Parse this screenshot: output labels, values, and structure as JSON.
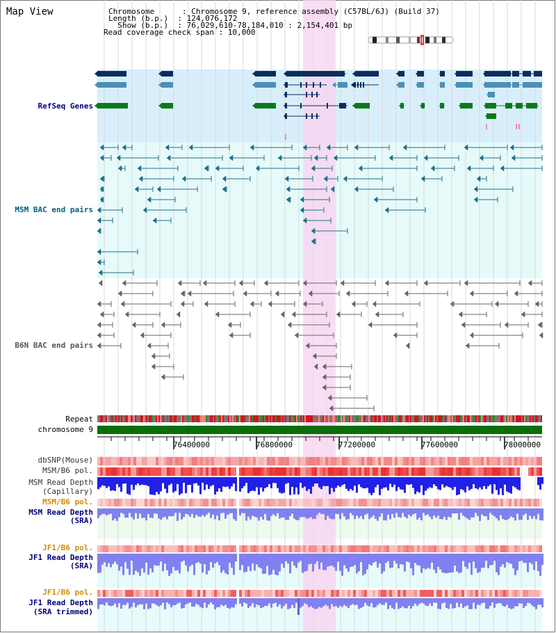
{
  "panel": {
    "title": "Map View"
  },
  "info": {
    "chromosome_label": "Chromosome      : ",
    "chromosome_value": "Chromosome 9, reference assembly (C57BL/6J) (Build 37)",
    "length_label": "Length (b.p.)  : ",
    "length_value": "124,076,172",
    "show_label": "  Show (b.p.)  : ",
    "show_value": "76,029,610-78,184,010 : 2,154,401 bp",
    "coverage_label": "Read coverage check span : ",
    "coverage_value": "10,000"
  },
  "tracks": {
    "refseq": "RefSeq Genes",
    "msm_bac": "MSM BAC end pairs",
    "b6n_bac": "B6N BAC end pairs",
    "repeat": "Repeat",
    "chromosome": "chromosome 9",
    "dbsnp": "dbSNP(Mouse)",
    "msm_b6_pol": "MSM/B6 pol.",
    "msm_read_depth": "MSM Read Depth",
    "msm_read_depth_sub": "(Capillary)",
    "msm_b6_pol_2": "MSM/B6 pol.",
    "msm_read_depth_sra": "MSM Read Depth",
    "msm_read_depth_sra_sub": "(SRA)",
    "jf1_b6_pol": "JF1/B6 pol.",
    "jf1_read_depth": "JF1 Read Depth",
    "jf1_read_depth_sub": "(SRA)",
    "jf1_b6_pol_2": "JF1/B6 pol.",
    "jf1_read_depth_trim": "JF1 Read Depth",
    "jf1_read_depth_trim_sub": "(SRA trimmed)"
  },
  "axis": {
    "ticks": [
      "76400000",
      "76800000",
      "77200000",
      "77600000",
      "78000000"
    ]
  },
  "colors": {
    "refseq_bg": "#d8eefa",
    "msm_bg": "#e6fafa",
    "highlight": "#f7d4f0",
    "navy_gene": "#0b2d5c",
    "steel_gene": "#4a90b8",
    "green_gene": "#0a7a1a",
    "chrom_bar": "#0a6e0a",
    "depth_blue": "#2020e8",
    "depth_light": "#8080f0"
  }
}
